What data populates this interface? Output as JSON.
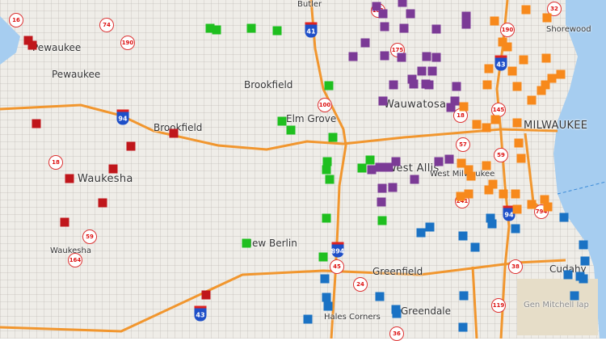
{
  "map": {
    "place_labels": [
      "Butler",
      "Pewaukee",
      "Pewaukee",
      "Brookfield",
      "Brookfield",
      "Elm Grove",
      "Wauwatosa",
      "Waukesha",
      "Waukesha",
      "West Allis",
      "West Milwaukee",
      "MILWAUKEE",
      "Shorewood",
      "New Berlin",
      "Greenfield",
      "Hales Corners",
      "Greendale",
      "Cudahy",
      "Gen Mitchell Iap"
    ],
    "state_routes": [
      "16",
      "74",
      "190",
      "181",
      "175",
      "100",
      "18",
      "145",
      "57",
      "59",
      "241",
      "794",
      "32",
      "190",
      "45",
      "24",
      "36",
      "119",
      "38",
      "164",
      "59",
      "18"
    ],
    "interstates": [
      "94",
      "41",
      "43",
      "94",
      "894",
      "43"
    ],
    "marker_groups": [
      {
        "name": "red",
        "color": "#c0161b"
      },
      {
        "name": "green",
        "color": "#1fbf1f"
      },
      {
        "name": "purple",
        "color": "#7b3a96"
      },
      {
        "name": "orange",
        "color": "#f7891c"
      },
      {
        "name": "blue",
        "color": "#1a72c4"
      }
    ],
    "colors": {
      "water": "#a6cdf0",
      "highway": "#f1962e",
      "land": "#efede8"
    }
  }
}
